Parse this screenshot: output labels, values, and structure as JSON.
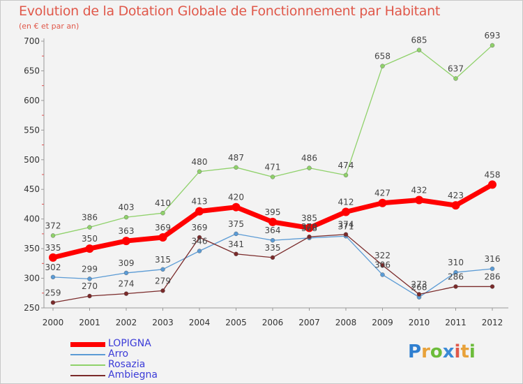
{
  "title": "Evolution de la Dotation Globale de Fonctionnement par Habitant",
  "subtitle": "(en € et par an)",
  "logo": "Proxiti",
  "colors": {
    "title": "#e0584a",
    "axis": "#999999",
    "tick_label": "#333333",
    "data_label": "#444444",
    "legend_text": "#3b3bd8"
  },
  "chart_data": {
    "type": "line",
    "title": "Evolution de la Dotation Globale de Fonctionnement par Habitant",
    "subtitle": "(en € et par an)",
    "x": [
      "2000",
      "2001",
      "2002",
      "2003",
      "2004",
      "2005",
      "2006",
      "2007",
      "2008",
      "2009",
      "2010",
      "2011",
      "2012"
    ],
    "ylim": [
      250,
      700
    ],
    "yticks": [
      250,
      300,
      350,
      400,
      450,
      500,
      550,
      600,
      650,
      700
    ],
    "grid": false,
    "legend_position": "bottom-left",
    "series": [
      {
        "name": "LOPIGNA",
        "color": "#ff0000",
        "values": [
          335,
          350,
          363,
          369,
          413,
          420,
          395,
          385,
          412,
          427,
          432,
          423,
          458
        ]
      },
      {
        "name": "Arro",
        "color": "#5b9bd5",
        "values": [
          302,
          299,
          309,
          315,
          346,
          375,
          364,
          368,
          371,
          306,
          268,
          310,
          316
        ]
      },
      {
        "name": "Rosazia",
        "color": "#8fd16a",
        "values": [
          372,
          386,
          403,
          410,
          480,
          487,
          471,
          486,
          474,
          658,
          685,
          637,
          693
        ]
      },
      {
        "name": "Ambiegna",
        "color": "#7a2a2a",
        "values": [
          259,
          270,
          274,
          279,
          369,
          341,
          335,
          370,
          374,
          322,
          273,
          286,
          286
        ]
      }
    ]
  }
}
